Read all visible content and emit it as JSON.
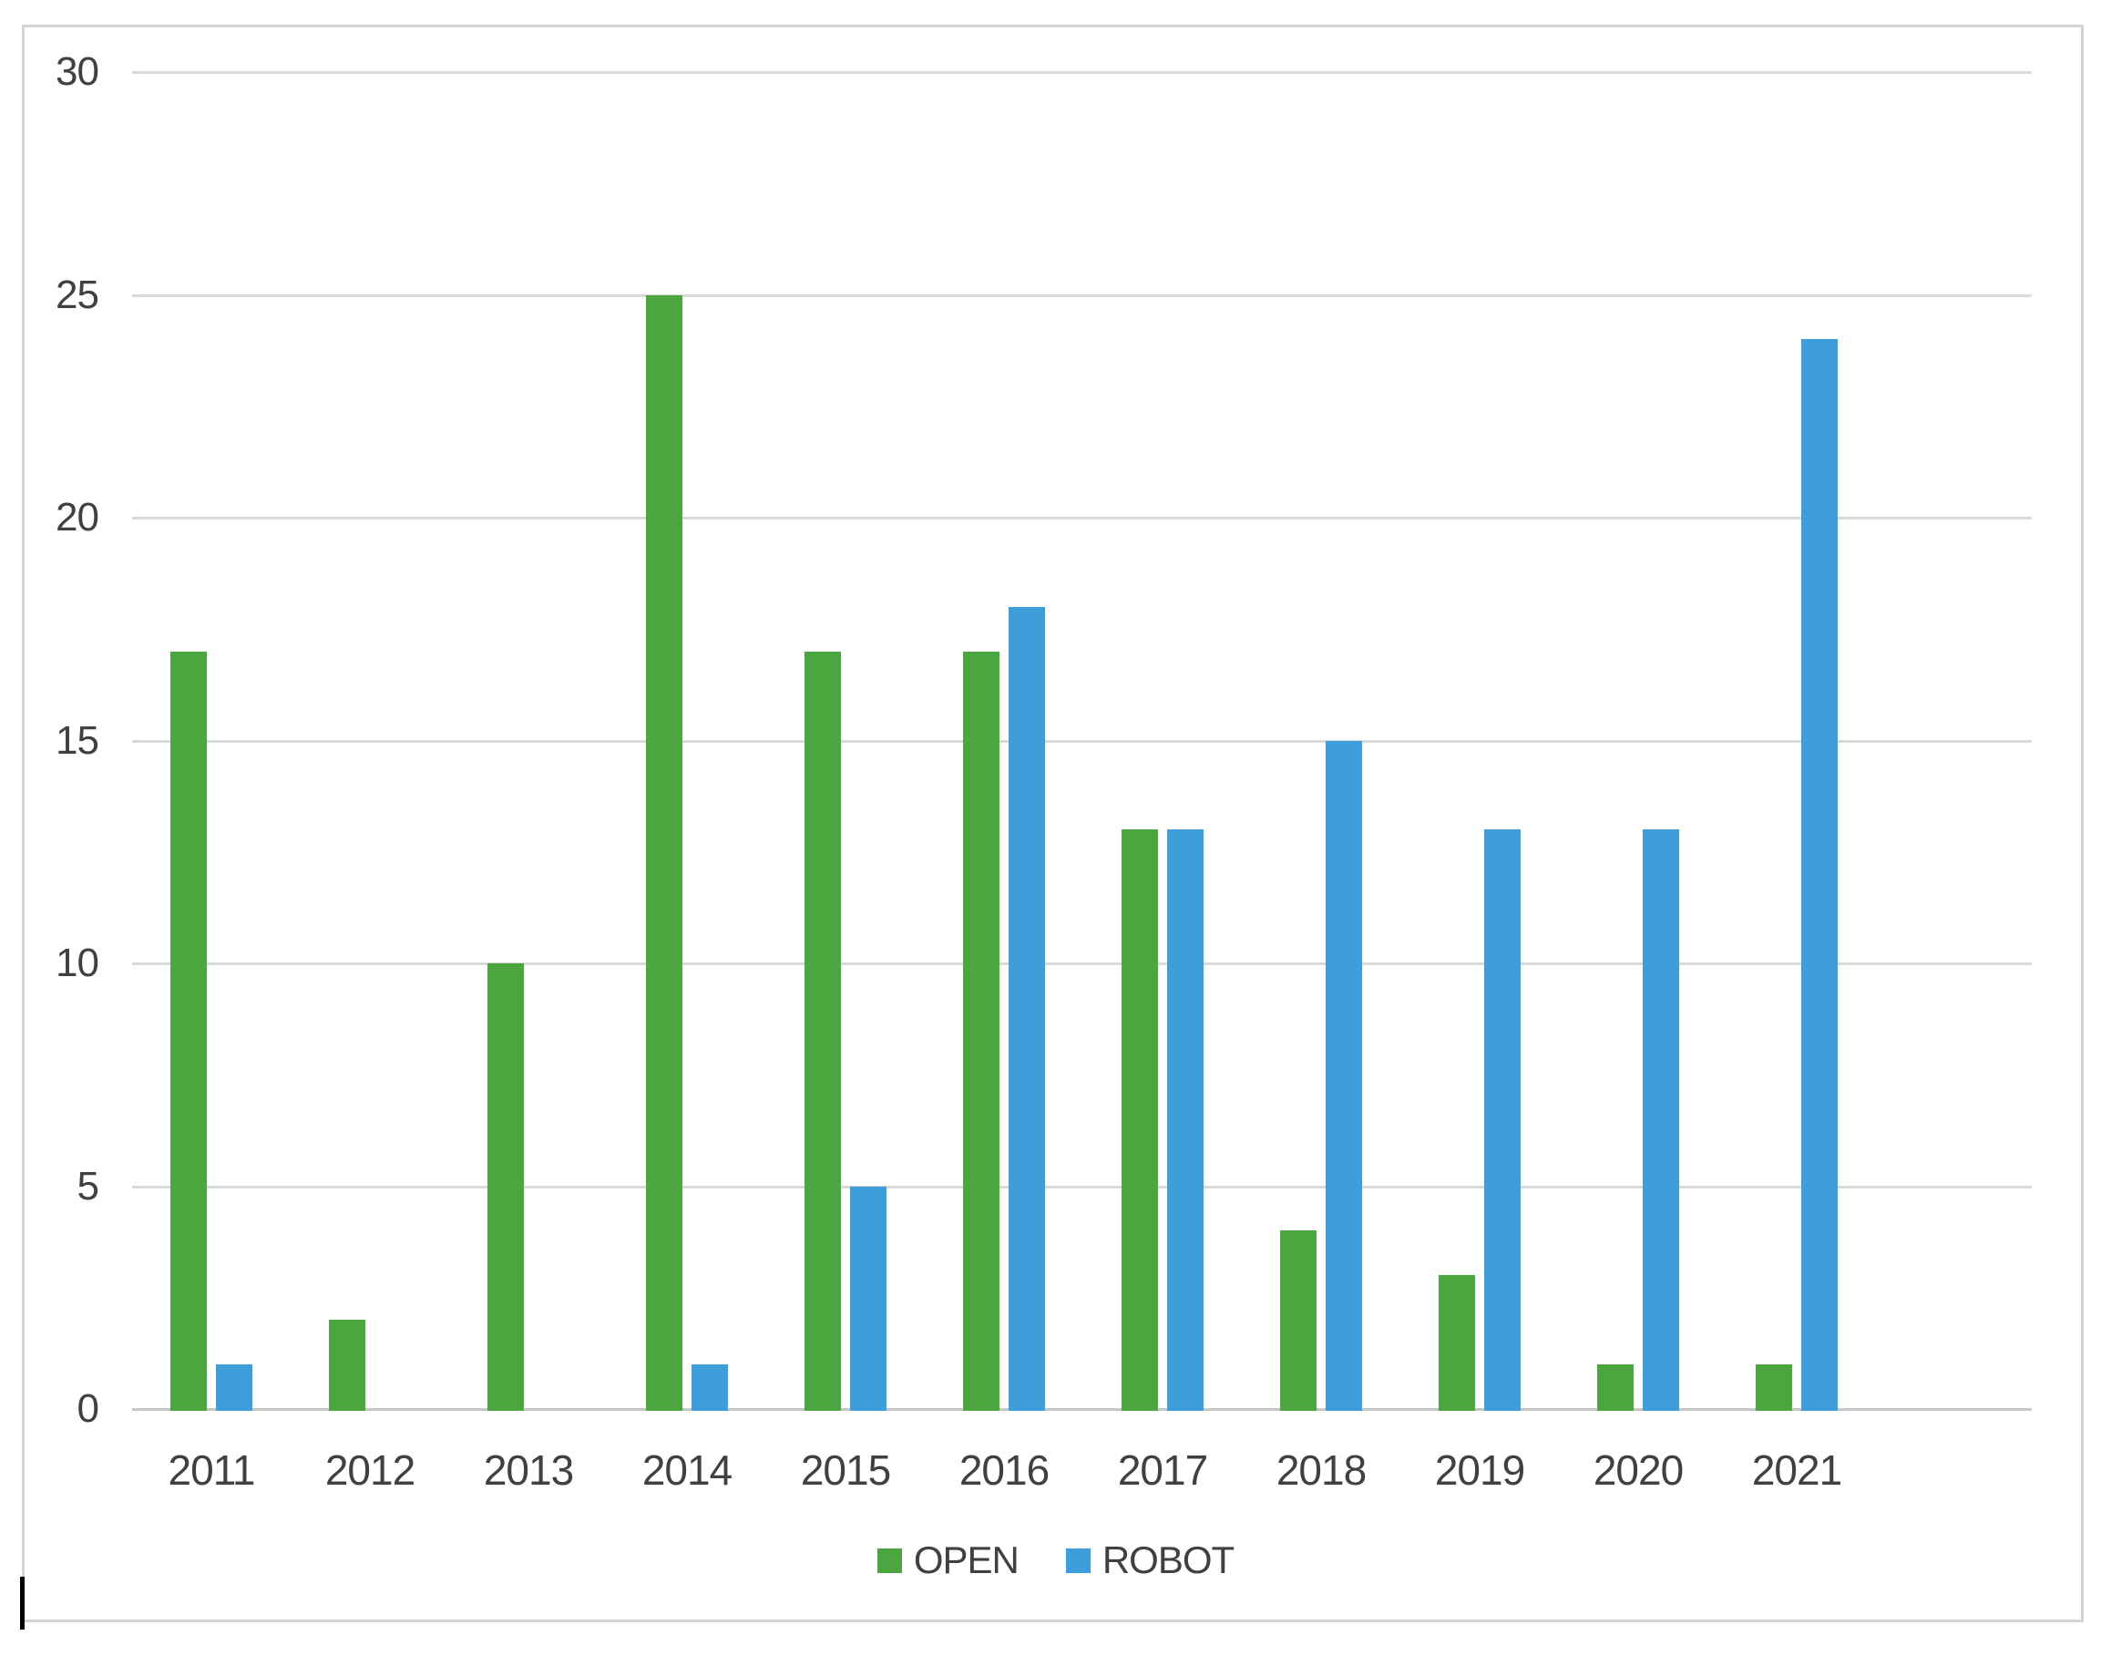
{
  "chart_data": {
    "type": "bar",
    "title": "",
    "xlabel": "",
    "ylabel": "",
    "categories": [
      "2011",
      "2012",
      "2013",
      "2014",
      "2015",
      "2016",
      "2017",
      "2018",
      "2019",
      "2020",
      "2021"
    ],
    "series": [
      {
        "name": "OPEN",
        "color": "#4ca63f",
        "values": [
          17,
          2,
          10,
          25,
          17,
          17,
          13,
          4,
          3,
          1,
          1
        ]
      },
      {
        "name": "ROBOT",
        "color": "#3e9ed9",
        "values": [
          1,
          0,
          0,
          1,
          5,
          18,
          13,
          15,
          13,
          13,
          24
        ]
      }
    ],
    "ylim": [
      0,
      30
    ],
    "yticks": [
      0,
      5,
      10,
      15,
      20,
      25,
      30
    ],
    "grid": "horizontal",
    "legend_position": "bottom-center",
    "colors": {
      "gridline": "#d9d9d9",
      "axis_line": "#c6c6c6",
      "tick_label": "#404040",
      "frame_border": "#d3d3d3",
      "background": "#ffffff"
    }
  }
}
